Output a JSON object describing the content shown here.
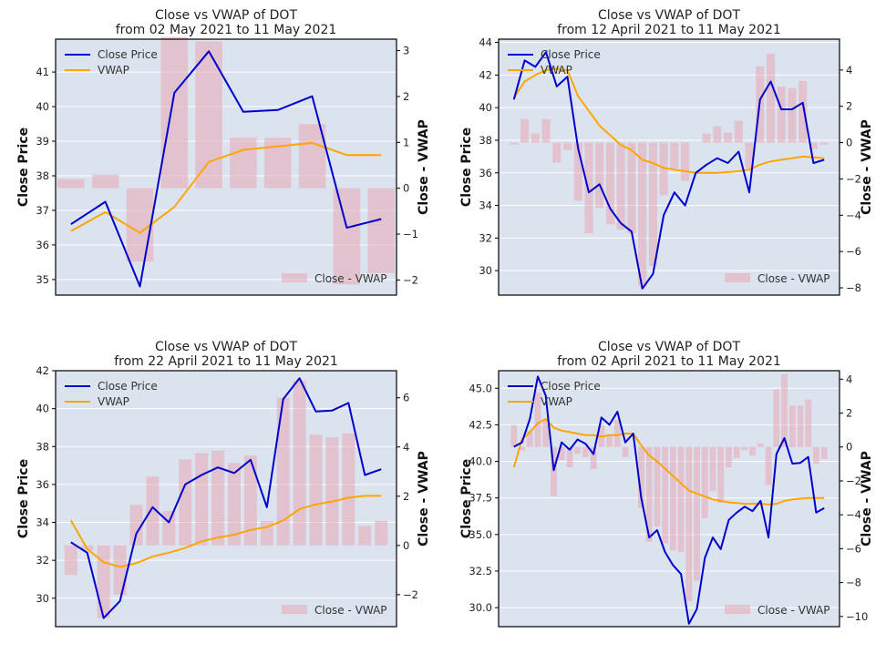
{
  "colors": {
    "close": "#0000cc",
    "vwap": "#ffa500",
    "bar": "#e8a7b5",
    "plot_bg": "#dbe3ef",
    "grid": "#ffffff"
  },
  "chart_data": [
    {
      "type": "line",
      "title": "Close vs VWAP of DOT",
      "subtitle": "from 02 May 2021 to 11 May 2021",
      "ylabel_left": "Close Price",
      "ylabel_right": "Close - VWAP",
      "ylim_left": [
        34.55,
        41.95
      ],
      "ylim_right": [
        -2.33,
        3.25
      ],
      "yticks_left": [
        35,
        36,
        37,
        38,
        39,
        40,
        41
      ],
      "yticks_right": [
        -2,
        -1,
        0,
        1,
        2,
        3
      ],
      "legend_upper": "upper-left",
      "legend_lower": "lower-right",
      "x": [
        0,
        1,
        2,
        3,
        4,
        5,
        6,
        7,
        8,
        9
      ],
      "series": [
        {
          "name": "Close Price",
          "values": [
            36.6,
            37.25,
            34.8,
            40.4,
            41.6,
            39.85,
            39.9,
            40.3,
            36.5,
            36.75
          ]
        },
        {
          "name": "VWAP",
          "values": [
            36.4,
            36.95,
            36.35,
            37.1,
            38.4,
            38.75,
            38.85,
            38.95,
            38.6,
            38.6
          ]
        },
        {
          "name": "Close - VWAP",
          "values": [
            0.2,
            0.3,
            -1.6,
            3.3,
            3.2,
            1.1,
            1.1,
            1.4,
            -2.1,
            -1.85
          ]
        }
      ]
    },
    {
      "type": "line",
      "title": "Close vs VWAP of DOT",
      "subtitle": "from 12 April 2021 to 11 May 2021",
      "ylabel_left": "Close Price",
      "ylabel_right": "Close - VWAP",
      "ylim_left": [
        28.5,
        44.2
      ],
      "ylim_right": [
        -8.4,
        5.7
      ],
      "yticks_left": [
        30,
        32,
        34,
        36,
        38,
        40,
        42,
        44
      ],
      "yticks_right": [
        -8,
        -6,
        -4,
        -2,
        0,
        2,
        4
      ],
      "legend_upper": "upper-left",
      "legend_lower": "lower-right",
      "x": [
        0,
        1,
        2,
        3,
        4,
        5,
        6,
        7,
        8,
        9,
        10,
        11,
        12,
        13,
        14,
        15,
        16,
        17,
        18,
        19,
        20,
        21,
        22,
        23,
        24,
        25,
        26,
        27,
        28,
        29
      ],
      "series": [
        {
          "name": "Close Price",
          "values": [
            40.5,
            42.9,
            42.5,
            43.4,
            41.3,
            41.9,
            37.5,
            34.8,
            35.3,
            33.8,
            32.9,
            32.4,
            28.9,
            29.8,
            33.4,
            34.8,
            34.0,
            36.0,
            36.5,
            36.9,
            36.6,
            37.3,
            34.8,
            40.5,
            41.6,
            39.9,
            39.9,
            40.3,
            36.6,
            36.8
          ]
        },
        {
          "name": "VWAP",
          "values": [
            40.6,
            41.6,
            42.0,
            42.3,
            42.4,
            42.3,
            40.7,
            39.8,
            38.9,
            38.3,
            37.7,
            37.4,
            36.8,
            36.6,
            36.3,
            36.2,
            36.1,
            36.0,
            36.0,
            36.0,
            36.05,
            36.1,
            36.2,
            36.5,
            36.7,
            36.8,
            36.9,
            37.0,
            36.95,
            36.9
          ]
        },
        {
          "name": "Close - VWAP",
          "values": [
            -0.1,
            1.3,
            0.5,
            1.3,
            -1.1,
            -0.4,
            -3.2,
            -5.0,
            -3.6,
            -4.5,
            -4.8,
            -5.0,
            -7.9,
            -6.8,
            -2.9,
            -1.4,
            -2.1,
            0.0,
            0.5,
            0.9,
            0.55,
            1.2,
            -1.4,
            4.2,
            4.9,
            3.1,
            3.0,
            3.4,
            -0.35,
            -0.1
          ]
        }
      ]
    },
    {
      "type": "line",
      "title": "Close vs VWAP of DOT",
      "subtitle": "from 22 April 2021 to 11 May 2021",
      "ylabel_left": "Close Price",
      "ylabel_right": "Close - VWAP",
      "ylim_left": [
        28.5,
        42.0
      ],
      "ylim_right": [
        -3.3,
        7.1
      ],
      "yticks_left": [
        30,
        32,
        34,
        36,
        38,
        40,
        42
      ],
      "yticks_right": [
        -2,
        0,
        2,
        4,
        6
      ],
      "legend_upper": "upper-left",
      "legend_lower": "lower-right",
      "x": [
        0,
        1,
        2,
        3,
        4,
        5,
        6,
        7,
        8,
        9,
        10,
        11,
        12,
        13,
        14,
        15,
        16,
        17,
        18,
        19
      ],
      "series": [
        {
          "name": "Close Price",
          "values": [
            32.95,
            32.4,
            28.95,
            29.85,
            33.4,
            34.8,
            34.0,
            36.0,
            36.5,
            36.9,
            36.6,
            37.3,
            34.8,
            40.5,
            41.6,
            39.85,
            39.9,
            40.3,
            36.5,
            36.8
          ]
        },
        {
          "name": "VWAP",
          "values": [
            34.1,
            32.6,
            31.9,
            31.65,
            31.85,
            32.2,
            32.4,
            32.65,
            33.0,
            33.2,
            33.35,
            33.6,
            33.75,
            34.1,
            34.7,
            34.95,
            35.1,
            35.3,
            35.4,
            35.4
          ]
        },
        {
          "name": "Close - VWAP",
          "values": [
            -1.2,
            -0.2,
            -2.95,
            -2.0,
            1.65,
            2.8,
            1.4,
            3.5,
            3.75,
            3.85,
            3.35,
            3.65,
            1.0,
            6.0,
            6.7,
            4.5,
            4.4,
            4.55,
            0.8,
            1.0
          ]
        }
      ]
    },
    {
      "type": "line",
      "title": "Close vs VWAP of DOT",
      "subtitle": "from 02 April 2021 to 11 May 2021",
      "ylabel_left": "Close Price",
      "ylabel_right": "Close - VWAP",
      "ylim_left": [
        28.7,
        46.2
      ],
      "ylim_right": [
        -10.6,
        4.5
      ],
      "yticks_left": [
        30.0,
        32.5,
        35.0,
        37.5,
        40.0,
        42.5,
        45.0
      ],
      "yticks_right": [
        -10,
        -8,
        -6,
        -4,
        -2,
        0,
        2,
        4
      ],
      "legend_upper": "upper-left",
      "legend_lower": "lower-right",
      "x": [
        0,
        1,
        2,
        3,
        4,
        5,
        6,
        7,
        8,
        9,
        10,
        11,
        12,
        13,
        14,
        15,
        16,
        17,
        18,
        19,
        20,
        21,
        22,
        23,
        24,
        25,
        26,
        27,
        28,
        29,
        30,
        31,
        32,
        33,
        34,
        35,
        36,
        37,
        38,
        39
      ],
      "series": [
        {
          "name": "Close Price",
          "values": [
            41.0,
            41.3,
            42.9,
            45.8,
            44.5,
            39.4,
            41.3,
            40.8,
            41.5,
            41.2,
            40.5,
            43.0,
            42.5,
            43.4,
            41.3,
            41.9,
            37.5,
            34.8,
            35.3,
            33.8,
            32.9,
            32.3,
            28.9,
            29.9,
            33.4,
            34.8,
            34.0,
            36.0,
            36.5,
            36.9,
            36.6,
            37.3,
            34.8,
            40.5,
            41.6,
            39.85,
            39.9,
            40.3,
            36.5,
            36.8
          ]
        },
        {
          "name": "VWAP",
          "values": [
            39.6,
            41.5,
            42.0,
            42.6,
            42.9,
            42.3,
            42.1,
            42.0,
            41.9,
            41.8,
            41.8,
            41.7,
            41.8,
            41.8,
            41.9,
            41.9,
            41.1,
            40.4,
            40.0,
            39.5,
            39.0,
            38.5,
            38.0,
            37.8,
            37.6,
            37.4,
            37.3,
            37.2,
            37.15,
            37.1,
            37.1,
            37.1,
            37.05,
            37.1,
            37.3,
            37.4,
            37.45,
            37.5,
            37.5,
            37.5
          ]
        },
        {
          "name": "Close - VWAP",
          "values": [
            1.3,
            -0.2,
            0.9,
            3.2,
            1.6,
            -2.9,
            -0.8,
            -1.2,
            -0.4,
            -0.6,
            -1.3,
            1.3,
            0.7,
            1.6,
            -0.6,
            0.0,
            -3.6,
            -5.6,
            -4.7,
            -5.7,
            -6.1,
            -6.2,
            -9.1,
            -7.9,
            -4.2,
            -2.6,
            -3.3,
            -1.2,
            -0.65,
            -0.2,
            -0.5,
            0.2,
            -2.25,
            3.4,
            4.3,
            2.45,
            2.45,
            2.8,
            -1.0,
            -0.7
          ]
        }
      ]
    }
  ]
}
